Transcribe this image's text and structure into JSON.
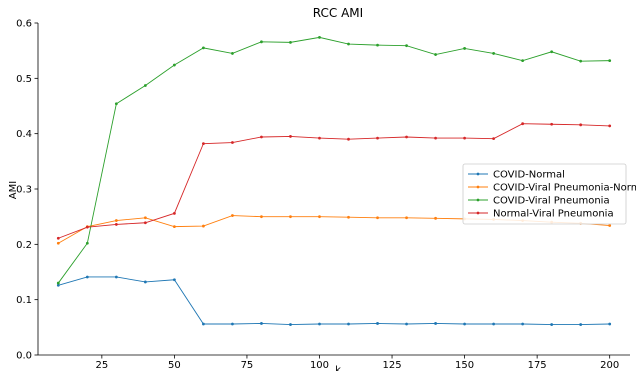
{
  "chart_data": {
    "type": "line",
    "title": "RCC AMI",
    "xlabel": "k",
    "ylabel": "AMI",
    "xlim": [
      3,
      207
    ],
    "ylim": [
      0.0,
      0.6
    ],
    "xticks": [
      25,
      50,
      75,
      100,
      125,
      150,
      175,
      200
    ],
    "yticks": [
      0.0,
      0.1,
      0.2,
      0.3,
      0.4,
      0.5,
      0.6
    ],
    "x": [
      10,
      20,
      30,
      40,
      50,
      60,
      70,
      80,
      90,
      100,
      110,
      120,
      130,
      140,
      150,
      160,
      170,
      180,
      190,
      200
    ],
    "legend_position": "center-right",
    "grid": false,
    "series": [
      {
        "name": "COVID-Normal",
        "color": "#1f77b4",
        "values": [
          0.126,
          0.141,
          0.141,
          0.132,
          0.136,
          0.056,
          0.056,
          0.057,
          0.055,
          0.056,
          0.056,
          0.057,
          0.056,
          0.057,
          0.056,
          0.056,
          0.056,
          0.055,
          0.055,
          0.056
        ]
      },
      {
        "name": "COVID-Viral Pneumonia-Normal",
        "color": "#ff7f0e",
        "values": [
          0.202,
          0.232,
          0.243,
          0.248,
          0.232,
          0.233,
          0.252,
          0.25,
          0.25,
          0.25,
          0.249,
          0.248,
          0.248,
          0.247,
          0.246,
          0.245,
          0.243,
          0.24,
          0.238,
          0.234
        ]
      },
      {
        "name": "COVID-Viral Pneumonia",
        "color": "#2ca02c",
        "values": [
          0.13,
          0.202,
          0.454,
          0.487,
          0.524,
          0.555,
          0.545,
          0.566,
          0.565,
          0.574,
          0.562,
          0.56,
          0.559,
          0.543,
          0.554,
          0.545,
          0.532,
          0.548,
          0.531,
          0.532
        ]
      },
      {
        "name": "Normal-Viral Pneumonia",
        "color": "#d62728",
        "values": [
          0.211,
          0.231,
          0.236,
          0.239,
          0.256,
          0.382,
          0.384,
          0.394,
          0.395,
          0.392,
          0.39,
          0.392,
          0.394,
          0.392,
          0.392,
          0.391,
          0.418,
          0.417,
          0.416,
          0.414
        ]
      }
    ]
  }
}
